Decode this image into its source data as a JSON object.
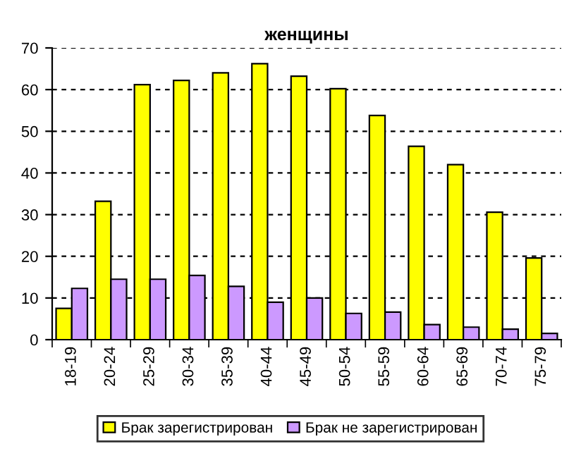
{
  "chart_data": {
    "type": "bar",
    "title": "женщины",
    "categories": [
      "18-19",
      "20-24",
      "25-29",
      "30-34",
      "35-39",
      "40-44",
      "45-49",
      "50-54",
      "55-59",
      "60-64",
      "65-69",
      "70-74",
      "75-79"
    ],
    "series": [
      {
        "name": "Брак зарегистрирован",
        "color": "#ffff00",
        "values": [
          7.5,
          33.2,
          61.2,
          62.2,
          64,
          66.2,
          63.2,
          60.2,
          53.8,
          46.4,
          42,
          30.6,
          19.6
        ]
      },
      {
        "name": "Брак не зарегистрирован",
        "color": "#cc99ff",
        "values": [
          12.3,
          14.5,
          14.5,
          15.4,
          12.8,
          9,
          10,
          6.3,
          6.6,
          3.6,
          3,
          2.5,
          1.5
        ]
      }
    ],
    "ylim": [
      0,
      70
    ],
    "yticks": [
      0,
      10,
      20,
      30,
      40,
      50,
      60,
      70
    ],
    "grid": "y",
    "legend": "bottom"
  }
}
